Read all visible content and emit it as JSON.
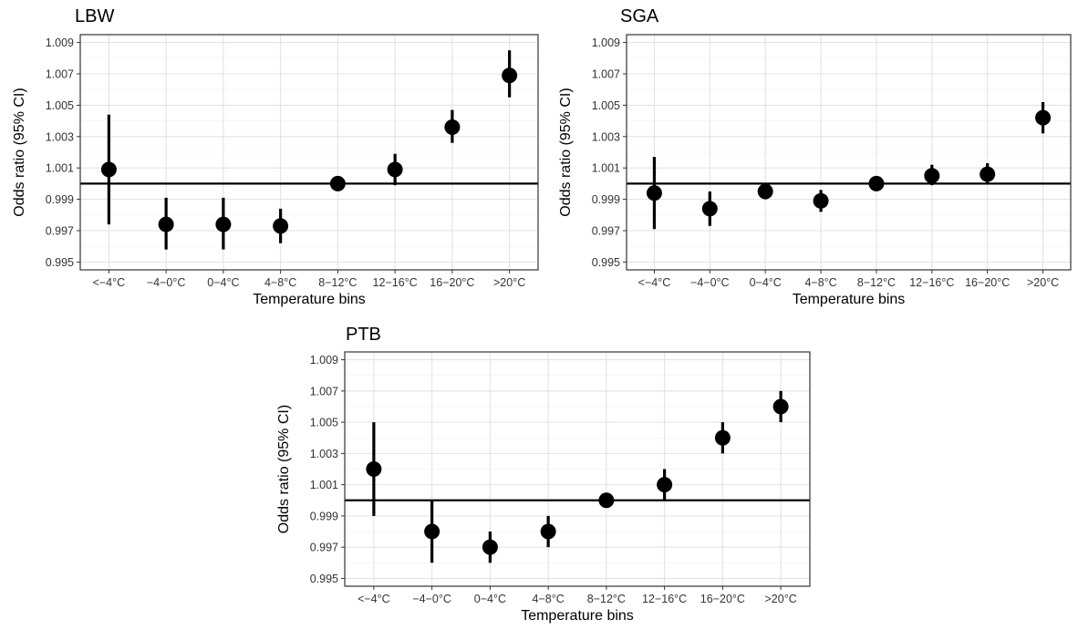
{
  "chart_data": [
    {
      "type": "scatter",
      "title": "LBW",
      "xlabel": "Temperature bins",
      "ylabel": "Odds ratio (95% CI)",
      "categories": [
        "<−4°C",
        "−4−0°C",
        "0−4°C",
        "4−8°C",
        "8−12°C",
        "12−16°C",
        "16−20°C",
        ">20°C"
      ],
      "yticks": [
        "0.995",
        "0.997",
        "0.999",
        "1.001",
        "1.003",
        "1.005",
        "1.007",
        "1.009"
      ],
      "ylim": [
        0.9945,
        1.0095
      ],
      "reference_line": 1.0,
      "grid": true,
      "values": [
        1.0009,
        0.9974,
        0.9974,
        0.9973,
        1.0,
        1.0009,
        1.0036,
        1.0069
      ],
      "lower": [
        0.9974,
        0.9958,
        0.9958,
        0.9962,
        1.0,
        0.9999,
        1.0026,
        1.0055
      ],
      "upper": [
        1.0044,
        0.9991,
        0.9991,
        0.9984,
        1.0,
        1.0019,
        1.0047,
        1.0085
      ]
    },
    {
      "type": "scatter",
      "title": "SGA",
      "xlabel": "Temperature bins",
      "ylabel": "Odds ratio (95% CI)",
      "categories": [
        "<−4°C",
        "−4−0°C",
        "0−4°C",
        "4−8°C",
        "8−12°C",
        "12−16°C",
        "16−20°C",
        ">20°C"
      ],
      "yticks": [
        "0.995",
        "0.997",
        "0.999",
        "1.001",
        "1.003",
        "1.005",
        "1.007",
        "1.009"
      ],
      "ylim": [
        0.9945,
        1.0095
      ],
      "reference_line": 1.0,
      "grid": true,
      "values": [
        0.9994,
        0.9984,
        0.9995,
        0.9989,
        1.0,
        1.0005,
        1.0006,
        1.0042
      ],
      "lower": [
        0.9971,
        0.9973,
        0.999,
        0.9982,
        1.0,
        0.9999,
        1.0,
        1.0032
      ],
      "upper": [
        1.0017,
        0.9995,
        1.0,
        0.9996,
        1.0,
        1.0012,
        1.0013,
        1.0052
      ]
    },
    {
      "type": "scatter",
      "title": "PTB",
      "xlabel": "Temperature bins",
      "ylabel": "Odds ratio (95% CI)",
      "categories": [
        "<−4°C",
        "−4−0°C",
        "0−4°C",
        "4−8°C",
        "8−12°C",
        "12−16°C",
        "16−20°C",
        ">20°C"
      ],
      "yticks": [
        "0.995",
        "0.997",
        "0.999",
        "1.001",
        "1.003",
        "1.005",
        "1.007",
        "1.009"
      ],
      "ylim": [
        0.9945,
        1.0095
      ],
      "reference_line": 1.0,
      "grid": true,
      "values": [
        1.002,
        0.998,
        0.997,
        0.998,
        1.0,
        1.001,
        1.004,
        1.006
      ],
      "lower": [
        0.999,
        0.996,
        0.996,
        0.997,
        1.0,
        1.0,
        1.003,
        1.005
      ],
      "upper": [
        1.005,
        1.0,
        0.998,
        0.999,
        1.0,
        1.002,
        1.005,
        1.007
      ]
    }
  ]
}
